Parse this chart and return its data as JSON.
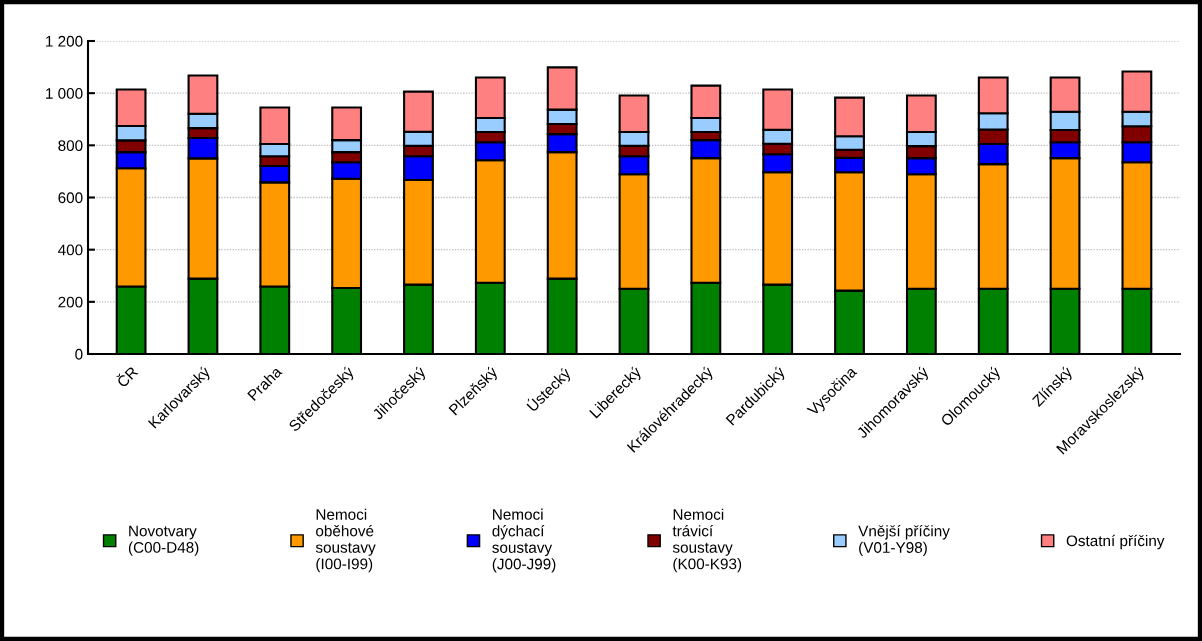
{
  "chart_data": {
    "type": "bar",
    "stacked": true,
    "categories": [
      "ČR",
      "Karlovarský",
      "Praha",
      "Středočeský",
      "Jihočeský",
      "Plzeňský",
      "Ústecký",
      "Liberecký",
      "Královéhradecký",
      "Pardubický",
      "Vysočina",
      "Jihomoravský",
      "Olomoucký",
      "Zlínský",
      "Moravskoslezský"
    ],
    "series": [
      {
        "name": "Novotvary\n(C00-D48)",
        "color": "#008000",
        "values": [
          259,
          289,
          259,
          253,
          266,
          273,
          289,
          250,
          273,
          266,
          243,
          250,
          250,
          250,
          250
        ]
      },
      {
        "name": "Nemoci\noběhové\nsoustavy\n(I00-I99)",
        "color": "#ff9900",
        "values": [
          453,
          461,
          399,
          419,
          401,
          470,
          485,
          439,
          478,
          431,
          454,
          439,
          478,
          501,
          485
        ]
      },
      {
        "name": "Nemoci\ndýchací\nsoustavy\n(J00-J99)",
        "color": "#0000ff",
        "values": [
          62,
          78,
          63,
          63,
          91,
          69,
          69,
          69,
          69,
          69,
          55,
          62,
          77,
          61,
          77
        ]
      },
      {
        "name": "Nemoci\ntrávicí\nsoustavy\n(K00-K93)",
        "color": "#800000",
        "values": [
          45,
          38,
          37,
          39,
          40,
          39,
          39,
          40,
          31,
          40,
          31,
          46,
          56,
          47,
          61
        ]
      },
      {
        "name": "Vnější příčiny\n(V01-Y98)",
        "color": "#99ccff",
        "values": [
          55,
          55,
          47,
          46,
          54,
          54,
          55,
          53,
          54,
          54,
          52,
          54,
          62,
          70,
          56
        ]
      },
      {
        "name": "Ostatní příčiny",
        "color": "#ff8080",
        "values": [
          140,
          147,
          140,
          125,
          154,
          155,
          162,
          140,
          124,
          154,
          148,
          140,
          137,
          131,
          154
        ]
      }
    ],
    "ylim": [
      0,
      1200
    ],
    "yticks": [
      0,
      200,
      400,
      600,
      800,
      {
        "value": 1000,
        "label": "1 000"
      },
      {
        "value": 1200,
        "label": "1 200"
      }
    ],
    "grid": "y",
    "legend": "bottom"
  }
}
